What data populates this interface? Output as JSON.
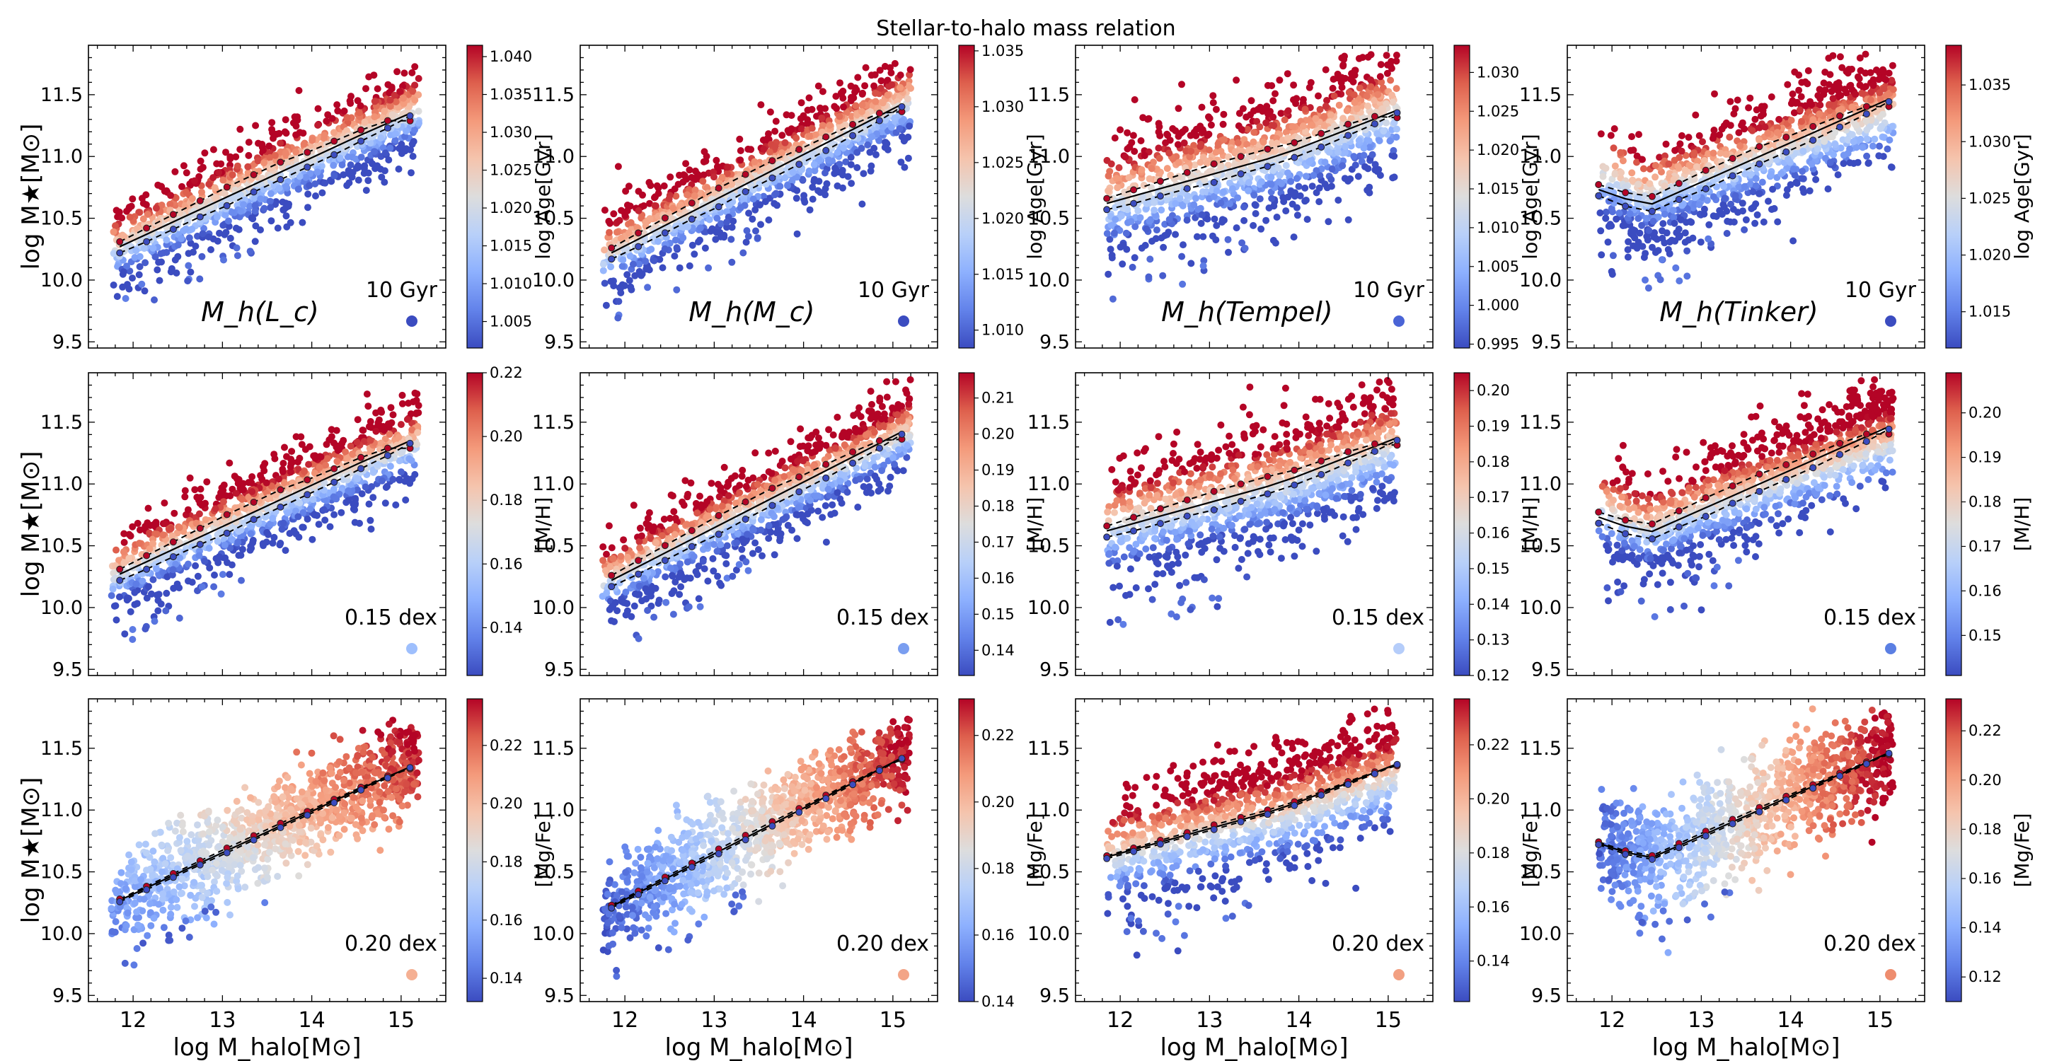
{
  "figure_title": "Stellar-to-halo mass relation",
  "axis_text": {
    "xlabel": "log M_halo[M⊙]",
    "ylabel": "log M★[M⊙]"
  },
  "panel_colors": {
    "age": [
      "#3b4cc0",
      "#3b4cc0",
      "#4a64d6",
      "#3b4cc0"
    ],
    "mh": [
      "#9ebffd",
      "#7a9ef0",
      "#b5cdfa",
      "#5b7fe3"
    ],
    "mgfe": [
      "#f5b093",
      "#f3a587",
      "#f2a082",
      "#ee8d6f"
    ]
  },
  "chart_data": {
    "type": "scatter",
    "title": "Stellar-to-halo mass relation",
    "xlabel": "log M_halo [M⊙]",
    "ylabel": "log M★ [M⊙]",
    "xlim": [
      11.5,
      15.5
    ],
    "ylim": [
      9.45,
      11.9
    ],
    "xticks": [
      12,
      13,
      14,
      15
    ],
    "yticks": [
      9.5,
      10.0,
      10.5,
      11.0,
      11.5
    ],
    "columns": [
      "M_h(L_c)",
      "M_h(M_c)",
      "M_h(Tempel)",
      "M_h(Tinker)"
    ],
    "rows": [
      {
        "property": "log Age[Gyr]",
        "label": "10 Gyr",
        "colorbars": [
          {
            "range": [
              1.0015,
              1.0415
            ],
            "ticks": [
              "1.005",
              "1.010",
              "1.015",
              "1.020",
              "1.025",
              "1.030",
              "1.035",
              "1.040"
            ]
          },
          {
            "range": [
              1.0084,
              1.0355
            ],
            "ticks": [
              "1.010",
              "1.015",
              "1.020",
              "1.025",
              "1.030",
              "1.035"
            ]
          },
          {
            "range": [
              0.9945,
              1.0335
            ],
            "ticks": [
              "0.995",
              "1.000",
              "1.005",
              "1.010",
              "1.015",
              "1.020",
              "1.025",
              "1.030"
            ]
          },
          {
            "range": [
              1.0118,
              1.0385
            ],
            "ticks": [
              "1.015",
              "1.020",
              "1.025",
              "1.030",
              "1.035"
            ]
          }
        ]
      },
      {
        "property": "[M/H]",
        "label": "0.15 dex",
        "colorbars": [
          {
            "range": [
              0.125,
              0.22
            ],
            "ticks": [
              "0.14",
              "0.16",
              "0.18",
              "0.20",
              "0.22"
            ]
          },
          {
            "range": [
              0.133,
              0.217
            ],
            "ticks": [
              "0.14",
              "0.15",
              "0.16",
              "0.17",
              "0.18",
              "0.19",
              "0.20",
              "0.21"
            ]
          },
          {
            "range": [
              0.12,
              0.205
            ],
            "ticks": [
              "0.12",
              "0.13",
              "0.14",
              "0.15",
              "0.16",
              "0.17",
              "0.18",
              "0.19",
              "0.20"
            ]
          },
          {
            "range": [
              0.141,
              0.209
            ],
            "ticks": [
              "0.15",
              "0.16",
              "0.17",
              "0.18",
              "0.19",
              "0.20"
            ]
          }
        ]
      },
      {
        "property": "[Mg/Fe]",
        "label": "0.20 dex",
        "colorbars": [
          {
            "range": [
              0.132,
              0.236
            ],
            "ticks": [
              "0.14",
              "0.16",
              "0.18",
              "0.20",
              "0.22"
            ]
          },
          {
            "range": [
              0.14,
              0.231
            ],
            "ticks": [
              "0.14",
              "0.16",
              "0.18",
              "0.20",
              "0.22"
            ]
          },
          {
            "range": [
              0.125,
              0.237
            ],
            "ticks": [
              "0.14",
              "0.16",
              "0.18",
              "0.20",
              "0.22"
            ]
          },
          {
            "range": [
              0.11,
              0.233
            ],
            "ticks": [
              "0.12",
              "0.14",
              "0.16",
              "0.18",
              "0.20",
              "0.22"
            ]
          }
        ]
      }
    ],
    "series": [
      {
        "name": "mean relation (solid)",
        "x": [
          11.85,
          12.15,
          12.45,
          12.75,
          13.05,
          13.35,
          13.65,
          13.95,
          14.25,
          14.55,
          14.85,
          15.1
        ],
        "y": [
          10.27,
          10.43,
          10.56,
          10.67,
          10.78,
          10.88,
          10.98,
          11.08,
          11.17,
          11.25,
          11.33,
          11.36
        ]
      },
      {
        "name": "upper tercile (dashed, red markers)",
        "x": [
          11.85,
          12.15,
          12.45,
          12.75,
          13.05,
          13.35,
          13.65,
          13.95,
          14.25,
          14.55,
          14.85,
          15.1
        ],
        "y": [
          10.31,
          10.48,
          10.62,
          10.74,
          10.86,
          10.96,
          11.06,
          11.14,
          11.22,
          11.29,
          11.35,
          11.3
        ]
      },
      {
        "name": "lower tercile (dashed, blue markers)",
        "x": [
          11.85,
          12.15,
          12.45,
          12.75,
          13.05,
          13.35,
          13.65,
          13.95,
          14.25,
          14.55,
          14.85,
          15.1
        ],
        "y": [
          10.22,
          10.37,
          10.5,
          10.61,
          10.71,
          10.82,
          10.92,
          11.02,
          11.11,
          11.2,
          11.29,
          11.34
        ]
      }
    ]
  }
}
